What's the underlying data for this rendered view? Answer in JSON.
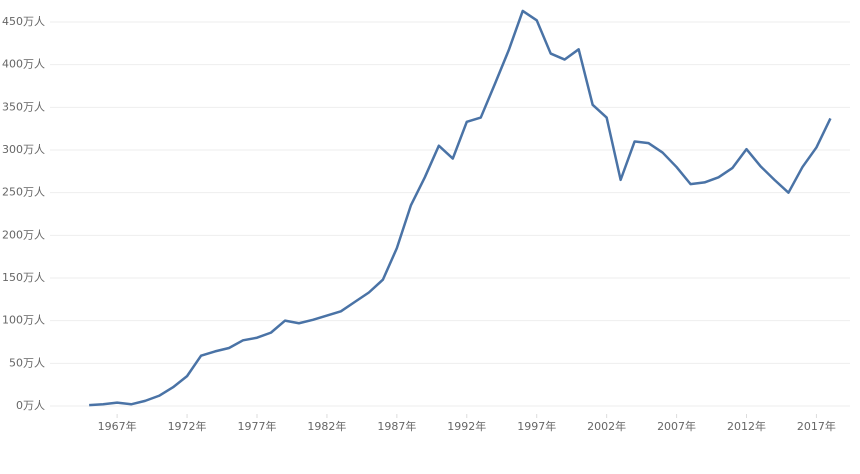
{
  "chart_data": {
    "type": "line",
    "x": [
      1965,
      1966,
      1967,
      1968,
      1969,
      1970,
      1971,
      1972,
      1973,
      1974,
      1975,
      1976,
      1977,
      1978,
      1979,
      1980,
      1981,
      1982,
      1983,
      1984,
      1985,
      1986,
      1987,
      1988,
      1989,
      1990,
      1991,
      1992,
      1993,
      1994,
      1995,
      1996,
      1997,
      1998,
      1999,
      2000,
      2001,
      2002,
      2003,
      2004,
      2005,
      2006,
      2007,
      2008,
      2009,
      2010,
      2011,
      2012,
      2013,
      2014,
      2015,
      2016,
      2017,
      2018
    ],
    "series": [
      {
        "color": "#4a73a6",
        "values": [
          1,
          2,
          4,
          2,
          6,
          12,
          22,
          35,
          59,
          64,
          68,
          77,
          80,
          86,
          100,
          97,
          101,
          106,
          111,
          122,
          133,
          148,
          185,
          235,
          268,
          305,
          290,
          333,
          338,
          377,
          417,
          463,
          452,
          413,
          406,
          418,
          353,
          338,
          265,
          310,
          308,
          297,
          280,
          260,
          262,
          268,
          279,
          301,
          281,
          265,
          250,
          280,
          303,
          337
        ]
      }
    ],
    "xlim": [
      1962.2,
      2019.4
    ],
    "xticks": [
      {
        "value": 1967,
        "label": "1967年"
      },
      {
        "value": 1972,
        "label": "1972年"
      },
      {
        "value": 1977,
        "label": "1977年"
      },
      {
        "value": 1982,
        "label": "1982年"
      },
      {
        "value": 1987,
        "label": "1987年"
      },
      {
        "value": 1992,
        "label": "1992年"
      },
      {
        "value": 1997,
        "label": "1997年"
      },
      {
        "value": 2002,
        "label": "2002年"
      },
      {
        "value": 2007,
        "label": "2007年"
      },
      {
        "value": 2012,
        "label": "2012年"
      },
      {
        "value": 2017,
        "label": "2017年"
      }
    ],
    "ylim": [
      0,
      450
    ],
    "yticks": [
      {
        "value": 0,
        "label": "0万人"
      },
      {
        "value": 50,
        "label": "50万人"
      },
      {
        "value": 100,
        "label": "100万人"
      },
      {
        "value": 150,
        "label": "150万人"
      },
      {
        "value": 200,
        "label": "200万人"
      },
      {
        "value": 250,
        "label": "250万人"
      },
      {
        "value": 300,
        "label": "300万人"
      },
      {
        "value": 350,
        "label": "350万人"
      },
      {
        "value": 400,
        "label": "400万人"
      },
      {
        "value": 450,
        "label": "450万人"
      }
    ],
    "grid": true
  }
}
